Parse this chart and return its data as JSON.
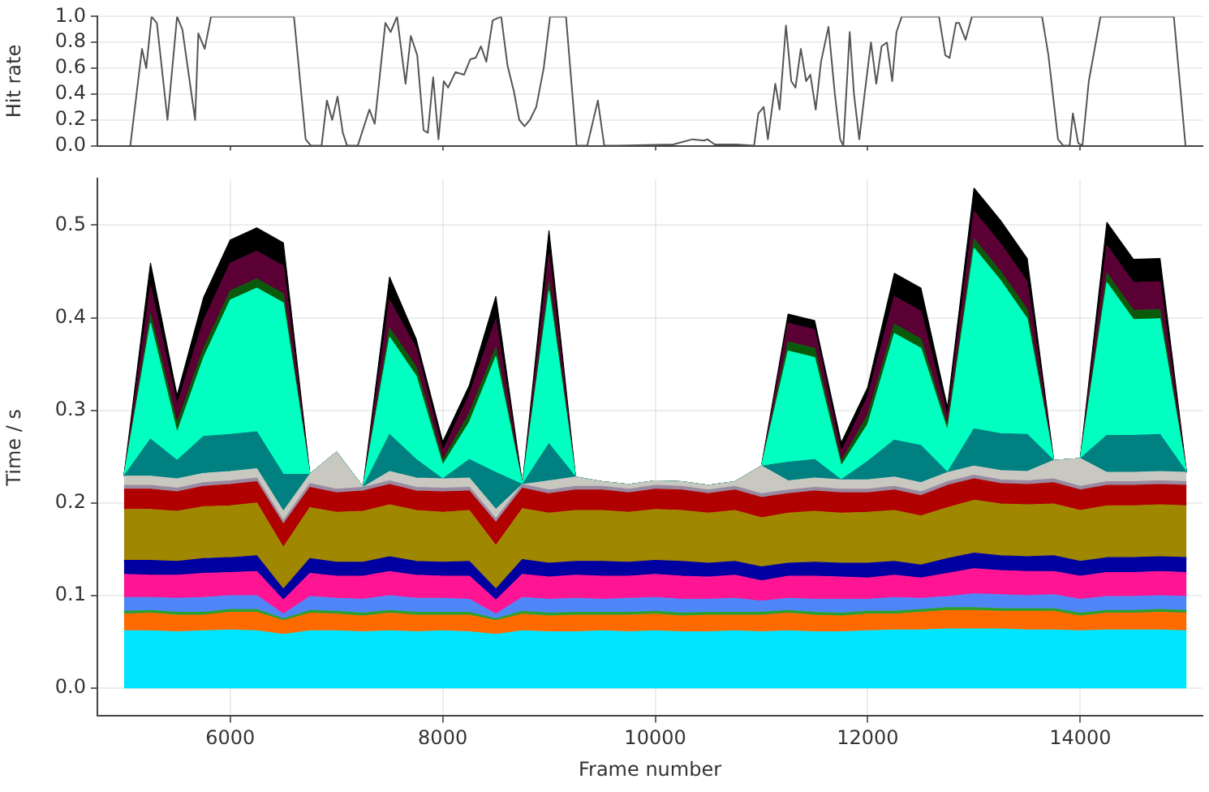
{
  "chart_data": [
    {
      "type": "line",
      "ylabel": "Hit rate",
      "xlim": [
        4750,
        15150
      ],
      "xticks": [
        6000,
        8000,
        10000,
        12000,
        14000
      ],
      "ylim": [
        0,
        1
      ],
      "yticks": [
        {
          "value": 0,
          "label": "0.0"
        },
        {
          "value": 0.2,
          "label": "0.2"
        },
        {
          "value": 0.4,
          "label": "0.4"
        },
        {
          "value": 0.6,
          "label": "0.6"
        },
        {
          "value": 0.8,
          "label": "0.8"
        },
        {
          "value": 1,
          "label": "1.0"
        }
      ],
      "tick_labels": "y",
      "grid": "y",
      "marker": "none",
      "line_style": "solid",
      "series": [
        {
          "color": "#555555",
          "x": [
            5060,
            5170,
            5210,
            5260,
            5310,
            5410,
            5500,
            5550,
            5670,
            5700,
            5760,
            5820,
            6600,
            6710,
            6760,
            6860,
            6910,
            6960,
            7010,
            7060,
            7100,
            7200,
            7310,
            7360,
            7460,
            7510,
            7570,
            7650,
            7700,
            7760,
            7820,
            7860,
            7910,
            7960,
            8010,
            8050,
            8120,
            8200,
            8260,
            8310,
            8360,
            8410,
            8470,
            8550,
            8610,
            8670,
            8720,
            8770,
            8820,
            8880,
            8950,
            9010,
            9160,
            9260,
            9360,
            9460,
            9520,
            9620,
            10170,
            10350,
            10460,
            10490,
            10560,
            10760,
            10930,
            10970,
            11020,
            11060,
            11130,
            11170,
            11230,
            11280,
            11320,
            11370,
            11420,
            11460,
            11510,
            11560,
            11630,
            11690,
            11740,
            11770,
            11830,
            11870,
            11920,
            11970,
            12030,
            12080,
            12130,
            12180,
            12230,
            12270,
            12320,
            12670,
            12730,
            12770,
            12830,
            12860,
            12920,
            12980,
            13640,
            13700,
            13790,
            13840,
            13900,
            13930,
            13980,
            14020,
            14080,
            14190,
            14880,
            14990
          ],
          "values": [
            0,
            0.75,
            0.6,
            1,
            0.95,
            0.2,
            1,
            0.9,
            0.2,
            0.87,
            0.75,
            1,
            1,
            0.05,
            0,
            0,
            0.35,
            0.2,
            0.38,
            0.1,
            0,
            0,
            0.28,
            0.17,
            0.95,
            0.88,
            1,
            0.48,
            0.85,
            0.7,
            0.12,
            0.1,
            0.53,
            0.05,
            0.5,
            0.45,
            0.57,
            0.55,
            0.67,
            0.68,
            0.77,
            0.65,
            0.97,
            1,
            0.62,
            0.42,
            0.2,
            0.15,
            0.2,
            0.3,
            0.6,
            1,
            1,
            0,
            0,
            0.35,
            0,
            0,
            0.01,
            0.05,
            0.04,
            0.05,
            0.01,
            0.01,
            0,
            0.25,
            0.3,
            0.05,
            0.48,
            0.28,
            0.93,
            0.5,
            0.45,
            0.75,
            0.5,
            0.55,
            0.28,
            0.65,
            0.92,
            0.4,
            0.05,
            0,
            0.88,
            0.4,
            0.05,
            0.4,
            0.8,
            0.48,
            0.77,
            0.8,
            0.5,
            0.88,
            1,
            1,
            0.7,
            0.68,
            0.95,
            0.95,
            0.82,
            1,
            1,
            0.7,
            0.05,
            0,
            0,
            0.25,
            0.02,
            0,
            0.5,
            1,
            1,
            0
          ]
        }
      ]
    },
    {
      "type": "area",
      "stacked": true,
      "xlabel": "Frame number",
      "ylabel": "Time / s",
      "xlim": [
        4750,
        15150
      ],
      "xticks": [
        6000,
        8000,
        10000,
        12000,
        14000
      ],
      "ylim": [
        -0.03,
        0.55
      ],
      "yticks": [
        {
          "value": 0,
          "label": "0.0"
        },
        {
          "value": 0.1,
          "label": "0.1"
        },
        {
          "value": 0.2,
          "label": "0.2"
        },
        {
          "value": 0.3,
          "label": "0.3"
        },
        {
          "value": 0.4,
          "label": "0.4"
        },
        {
          "value": 0.5,
          "label": "0.5"
        }
      ],
      "grid": true,
      "marker": "none",
      "x": [
        5000,
        5250,
        5500,
        5750,
        6000,
        6250,
        6500,
        6750,
        7000,
        7250,
        7500,
        7750,
        8000,
        8250,
        8500,
        8750,
        9000,
        9250,
        9500,
        9750,
        10000,
        10250,
        10500,
        10750,
        11000,
        11250,
        11500,
        11750,
        12000,
        12250,
        12500,
        12750,
        13000,
        13250,
        13500,
        13750,
        14000,
        14250,
        14500,
        14750,
        15000
      ],
      "series": [
        {
          "color": "#00e5ff",
          "values": [
            0.062,
            0.062,
            0.061,
            0.062,
            0.063,
            0.062,
            0.058,
            0.062,
            0.062,
            0.061,
            0.062,
            0.061,
            0.062,
            0.061,
            0.058,
            0.062,
            0.061,
            0.061,
            0.062,
            0.061,
            0.062,
            0.061,
            0.061,
            0.062,
            0.061,
            0.062,
            0.061,
            0.061,
            0.062,
            0.063,
            0.063,
            0.064,
            0.064,
            0.064,
            0.063,
            0.063,
            0.062,
            0.063,
            0.063,
            0.063,
            0.062
          ]
        },
        {
          "color": "#ff6a00",
          "values": [
            0.018,
            0.019,
            0.018,
            0.017,
            0.019,
            0.02,
            0.015,
            0.019,
            0.018,
            0.017,
            0.019,
            0.018,
            0.017,
            0.018,
            0.015,
            0.018,
            0.017,
            0.018,
            0.017,
            0.018,
            0.018,
            0.017,
            0.018,
            0.017,
            0.018,
            0.019,
            0.018,
            0.017,
            0.018,
            0.017,
            0.019,
            0.02,
            0.02,
            0.019,
            0.02,
            0.02,
            0.016,
            0.018,
            0.018,
            0.019,
            0.019
          ]
        },
        {
          "color": "#2ca02c",
          "values": [
            0.003,
            0.003,
            0.003,
            0.003,
            0.003,
            0.003,
            0.002,
            0.003,
            0.003,
            0.003,
            0.003,
            0.003,
            0.003,
            0.003,
            0.002,
            0.003,
            0.003,
            0.003,
            0.003,
            0.003,
            0.003,
            0.003,
            0.003,
            0.003,
            0.003,
            0.003,
            0.003,
            0.003,
            0.003,
            0.003,
            0.003,
            0.003,
            0.003,
            0.003,
            0.003,
            0.003,
            0.003,
            0.003,
            0.003,
            0.003,
            0.003
          ]
        },
        {
          "color": "#4f86f7",
          "values": [
            0.015,
            0.014,
            0.015,
            0.016,
            0.015,
            0.015,
            0.005,
            0.015,
            0.014,
            0.015,
            0.016,
            0.015,
            0.015,
            0.014,
            0.005,
            0.015,
            0.015,
            0.015,
            0.014,
            0.015,
            0.015,
            0.015,
            0.014,
            0.015,
            0.012,
            0.013,
            0.014,
            0.015,
            0.013,
            0.015,
            0.012,
            0.012,
            0.015,
            0.015,
            0.014,
            0.015,
            0.015,
            0.015,
            0.015,
            0.015,
            0.015
          ]
        },
        {
          "color": "#ff1493",
          "values": [
            0.025,
            0.024,
            0.025,
            0.026,
            0.025,
            0.026,
            0.015,
            0.025,
            0.024,
            0.025,
            0.026,
            0.025,
            0.024,
            0.025,
            0.015,
            0.025,
            0.024,
            0.025,
            0.025,
            0.024,
            0.025,
            0.025,
            0.024,
            0.025,
            0.022,
            0.024,
            0.025,
            0.024,
            0.023,
            0.024,
            0.022,
            0.025,
            0.027,
            0.026,
            0.026,
            0.025,
            0.025,
            0.026,
            0.026,
            0.026,
            0.026
          ]
        },
        {
          "color": "#0000a0",
          "values": [
            0.015,
            0.016,
            0.015,
            0.016,
            0.016,
            0.017,
            0.012,
            0.016,
            0.015,
            0.015,
            0.016,
            0.015,
            0.015,
            0.016,
            0.012,
            0.016,
            0.015,
            0.015,
            0.016,
            0.015,
            0.015,
            0.016,
            0.015,
            0.015,
            0.015,
            0.014,
            0.015,
            0.015,
            0.016,
            0.015,
            0.014,
            0.016,
            0.017,
            0.016,
            0.016,
            0.017,
            0.016,
            0.016,
            0.016,
            0.016,
            0.016
          ]
        },
        {
          "color": "#a08700",
          "values": [
            0.055,
            0.055,
            0.054,
            0.056,
            0.056,
            0.057,
            0.045,
            0.055,
            0.054,
            0.055,
            0.056,
            0.055,
            0.054,
            0.055,
            0.047,
            0.055,
            0.054,
            0.055,
            0.055,
            0.054,
            0.055,
            0.055,
            0.054,
            0.055,
            0.053,
            0.054,
            0.055,
            0.054,
            0.055,
            0.055,
            0.053,
            0.055,
            0.057,
            0.056,
            0.056,
            0.056,
            0.055,
            0.056,
            0.056,
            0.056,
            0.056
          ]
        },
        {
          "color": "#b00000",
          "values": [
            0.022,
            0.022,
            0.021,
            0.022,
            0.023,
            0.023,
            0.025,
            0.022,
            0.021,
            0.022,
            0.022,
            0.021,
            0.022,
            0.021,
            0.025,
            0.022,
            0.021,
            0.022,
            0.022,
            0.021,
            0.022,
            0.022,
            0.021,
            0.022,
            0.022,
            0.021,
            0.022,
            0.022,
            0.021,
            0.022,
            0.022,
            0.024,
            0.023,
            0.022,
            0.022,
            0.023,
            0.022,
            0.022,
            0.022,
            0.022,
            0.022
          ]
        },
        {
          "color": "#9a8aa0",
          "values": [
            0.004,
            0.004,
            0.004,
            0.004,
            0.004,
            0.004,
            0.004,
            0.004,
            0.004,
            0.004,
            0.004,
            0.004,
            0.004,
            0.004,
            0.004,
            0.004,
            0.004,
            0.004,
            0.004,
            0.004,
            0.004,
            0.004,
            0.004,
            0.004,
            0.004,
            0.004,
            0.004,
            0.004,
            0.004,
            0.004,
            0.004,
            0.004,
            0.004,
            0.004,
            0.004,
            0.004,
            0.004,
            0.004,
            0.004,
            0.004,
            0.004
          ]
        },
        {
          "color": "#c8c8c0",
          "values": [
            0.01,
            0.01,
            0.01,
            0.01,
            0.01,
            0.01,
            0.01,
            0.01,
            0.04,
            0,
            0.01,
            0.01,
            0.01,
            0.01,
            0.01,
            0,
            0.01,
            0.01,
            0.005,
            0.005,
            0.005,
            0.005,
            0.005,
            0.005,
            0.03,
            0.01,
            0.01,
            0.01,
            0.01,
            0.01,
            0.01,
            0.01,
            0.01,
            0.01,
            0.01,
            0.02,
            0.03,
            0.01,
            0.01,
            0.01,
            0.01
          ]
        },
        {
          "color": "#008080",
          "values": [
            0,
            0.04,
            0.02,
            0.04,
            0.04,
            0.04,
            0.04,
            0,
            0,
            0,
            0.04,
            0.02,
            0,
            0.02,
            0.04,
            0,
            0.04,
            0,
            0,
            0,
            0,
            0,
            0,
            0,
            0,
            0.02,
            0.02,
            0,
            0.02,
            0.04,
            0.04,
            0,
            0.04,
            0.04,
            0.04,
            0,
            0,
            0.04,
            0.04,
            0.04,
            0
          ]
        },
        {
          "color": "#00ffc0",
          "values": [
            0,
            0.125,
            0.03,
            0.085,
            0.145,
            0.155,
            0.185,
            0,
            0,
            0,
            0.105,
            0.09,
            0.015,
            0.04,
            0.125,
            0,
            0.165,
            0,
            0,
            0,
            0,
            0,
            0,
            0,
            0,
            0.12,
            0.11,
            0.015,
            0.04,
            0.115,
            0.105,
            0.045,
            0.195,
            0.165,
            0.125,
            0,
            0,
            0.165,
            0.125,
            0.125,
            0
          ]
        },
        {
          "color": "#0b5a0b",
          "values": [
            0,
            0.01,
            0.01,
            0.01,
            0.01,
            0.01,
            0.01,
            0,
            0,
            0,
            0.01,
            0.01,
            0.005,
            0.01,
            0.01,
            0,
            0.01,
            0,
            0,
            0,
            0,
            0,
            0,
            0,
            0,
            0.01,
            0.01,
            0.005,
            0.01,
            0.01,
            0.01,
            0.005,
            0.01,
            0.01,
            0.01,
            0,
            0,
            0.01,
            0.01,
            0.01,
            0
          ]
        },
        {
          "color": "#5a0035",
          "values": [
            0,
            0.03,
            0.02,
            0.03,
            0.03,
            0.03,
            0.03,
            0,
            0,
            0,
            0.03,
            0.02,
            0.01,
            0.02,
            0.03,
            0,
            0.03,
            0,
            0,
            0,
            0,
            0,
            0,
            0,
            0,
            0.02,
            0.02,
            0.01,
            0.02,
            0.03,
            0.03,
            0.01,
            0.03,
            0.03,
            0.03,
            0,
            0,
            0.03,
            0.03,
            0.03,
            0
          ]
        },
        {
          "color": "#000000",
          "values": [
            0,
            0.025,
            0.01,
            0.025,
            0.025,
            0.025,
            0.025,
            0,
            0,
            0,
            0.025,
            0.01,
            0.01,
            0.01,
            0.025,
            0,
            0.025,
            0,
            0,
            0,
            0,
            0,
            0,
            0,
            0,
            0.01,
            0.01,
            0.01,
            0.01,
            0.025,
            0.025,
            0.01,
            0.025,
            0.025,
            0.025,
            0,
            0,
            0.025,
            0.025,
            0.025,
            0
          ]
        }
      ]
    }
  ]
}
